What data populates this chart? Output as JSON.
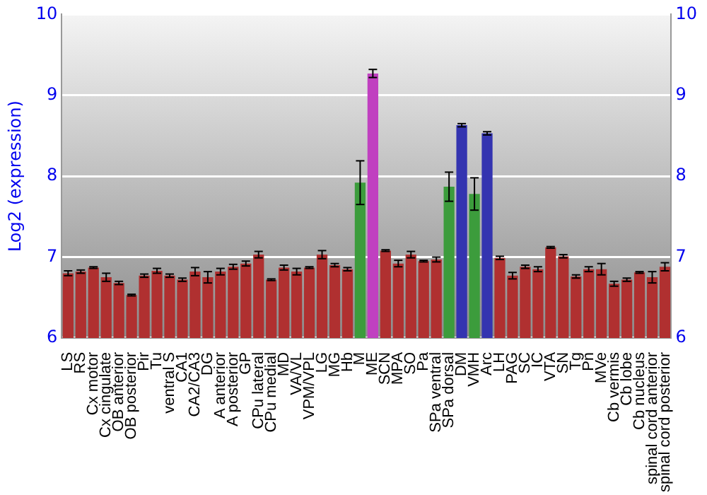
{
  "chart_data": {
    "type": "bar",
    "ylabel": "Log2 (expression)",
    "categories": [
      "LS",
      "RS",
      "Cx motor",
      "Cx cingulate",
      "OB anterior",
      "OB posterior",
      "Pir",
      "Tu",
      "ventral S",
      "CA1",
      "CA2/CA3",
      "DG",
      "A anterior",
      "A posterior",
      "GP",
      "CPu lateral",
      "CPu medial",
      "MD",
      "VA/VL",
      "VPM/VPL",
      "LG",
      "MG",
      "Hb",
      "M",
      "ME",
      "SCN",
      "MPA",
      "SO",
      "Pa",
      "SPa ventral",
      "SPa dorsal",
      "DM",
      "VMH",
      "Arc",
      "LH",
      "PAG",
      "SC",
      "IC",
      "VTA",
      "SN",
      "Tg",
      "Pn",
      "MVe",
      "Cb vermis",
      "Cb lobe",
      "Cb nucleus",
      "spinal cord anterior",
      "spinal cord posterior"
    ],
    "values": [
      6.8,
      6.82,
      6.87,
      6.75,
      6.68,
      6.53,
      6.77,
      6.83,
      6.77,
      6.72,
      6.82,
      6.75,
      6.82,
      6.88,
      6.92,
      7.03,
      6.72,
      6.87,
      6.82,
      6.87,
      7.03,
      6.9,
      6.85,
      7.92,
      9.27,
      7.08,
      6.92,
      7.03,
      6.95,
      6.97,
      7.87,
      8.63,
      7.78,
      8.53,
      6.99,
      6.77,
      6.88,
      6.85,
      7.12,
      7.01,
      6.76,
      6.85,
      6.85,
      6.67,
      6.72,
      6.81,
      6.75,
      6.88
    ],
    "errors": [
      0.03,
      0.02,
      0.01,
      0.05,
      0.02,
      0.01,
      0.02,
      0.03,
      0.02,
      0.02,
      0.05,
      0.07,
      0.04,
      0.03,
      0.03,
      0.04,
      0.01,
      0.03,
      0.04,
      0.01,
      0.05,
      0.02,
      0.02,
      0.27,
      0.05,
      0.01,
      0.04,
      0.04,
      0.01,
      0.03,
      0.18,
      0.02,
      0.2,
      0.02,
      0.02,
      0.04,
      0.02,
      0.03,
      0.01,
      0.02,
      0.02,
      0.03,
      0.07,
      0.03,
      0.02,
      0.01,
      0.07,
      0.05
    ],
    "colors": [
      "#b03030",
      "#b03030",
      "#b03030",
      "#b03030",
      "#b03030",
      "#b03030",
      "#b03030",
      "#b03030",
      "#b03030",
      "#b03030",
      "#b03030",
      "#b03030",
      "#b03030",
      "#b03030",
      "#b03030",
      "#b03030",
      "#b03030",
      "#b03030",
      "#b03030",
      "#b03030",
      "#b03030",
      "#b03030",
      "#b03030",
      "#3c9c3c",
      "#c040c0",
      "#b03030",
      "#b03030",
      "#b03030",
      "#b03030",
      "#b03030",
      "#3c9c3c",
      "#3434b0",
      "#3c9c3c",
      "#3434b0",
      "#b03030",
      "#b03030",
      "#b03030",
      "#b03030",
      "#b03030",
      "#b03030",
      "#b03030",
      "#b03030",
      "#b03030",
      "#b03030",
      "#b03030",
      "#b03030",
      "#b03030",
      "#b03030"
    ],
    "ylim": [
      6,
      10
    ],
    "yticks": [
      6,
      7,
      8,
      9,
      10
    ],
    "y2lim": [
      6,
      10
    ],
    "y2ticks": [
      6,
      7,
      8,
      9,
      10
    ],
    "grid": "y",
    "legend": false
  }
}
